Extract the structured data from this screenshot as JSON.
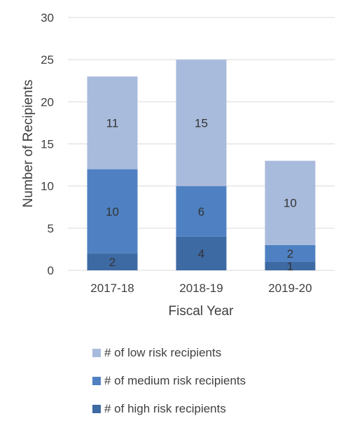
{
  "chart_data": {
    "type": "bar",
    "stacked": true,
    "categories": [
      "2017-18",
      "2018-19",
      "2019-20"
    ],
    "series": [
      {
        "name": "# of high risk recipients",
        "values": [
          2,
          4,
          1
        ],
        "color": "#3e6aa3"
      },
      {
        "name": "# of medium risk recipients",
        "values": [
          10,
          6,
          2
        ],
        "color": "#4f81c2"
      },
      {
        "name": "# of low risk recipients",
        "values": [
          11,
          15,
          10
        ],
        "color": "#a9bbdc"
      }
    ],
    "xlabel": "Fiscal Year",
    "ylabel": "Number of Recipients",
    "ylim": [
      0,
      30
    ],
    "yticks": [
      0,
      5,
      10,
      15,
      20,
      25,
      30
    ],
    "grid": true,
    "legend_position": "bottom",
    "legend_order": [
      "# of low risk recipients",
      "# of medium risk recipients",
      "# of high risk recipients"
    ]
  }
}
